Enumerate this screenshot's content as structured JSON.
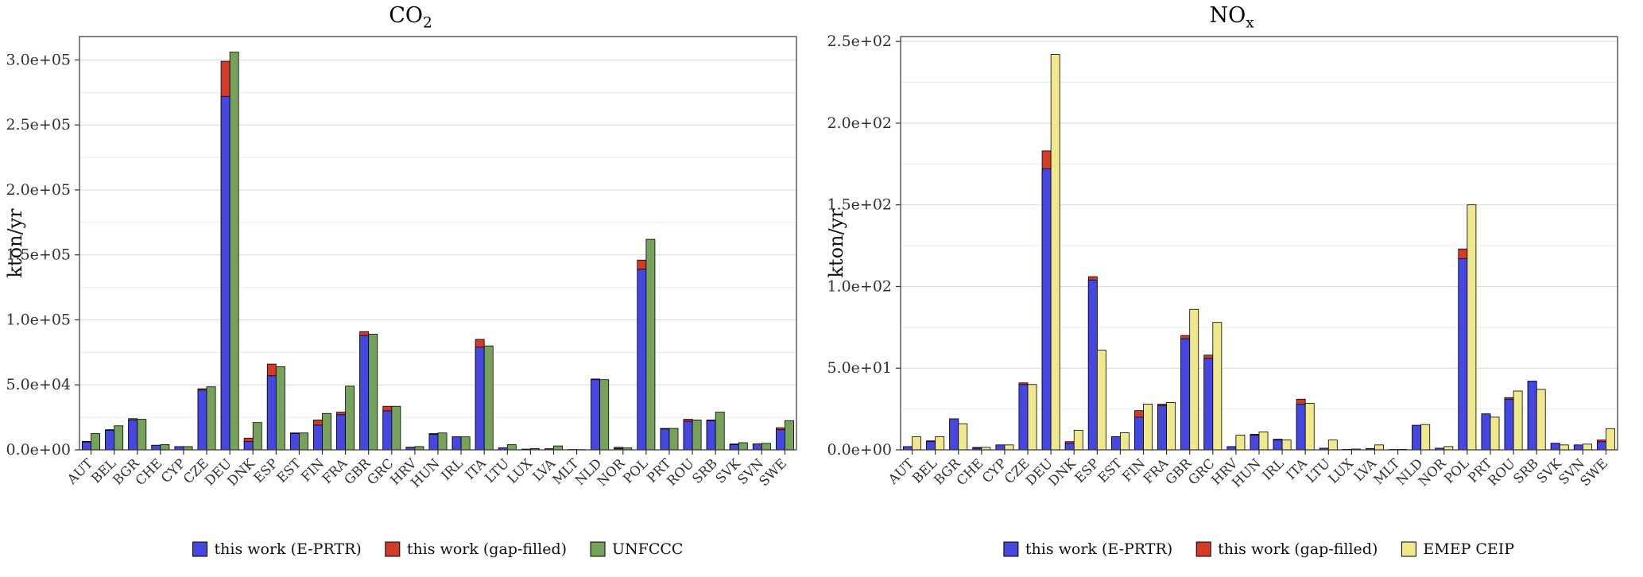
{
  "figure": {
    "background": "#ffffff",
    "grid_major_color": "#d9d9d9",
    "grid_minor_color": "#ebebeb",
    "plot_border_color": "#333333",
    "tick_label_color": "#303030",
    "bar_stroke_color": "#000000"
  },
  "chart_data": [
    {
      "type": "bar",
      "title_main": "CO",
      "title_sub": "2",
      "ylabel": "kton/yr",
      "ymax": 318000,
      "grid": true,
      "legend_position": "bottom",
      "bar_layout": "per country: one stacked bar (E-PRTR blue with gap-filled red cap) next to one reference bar",
      "yticks": [
        {
          "v": 0,
          "label": "0.0e+00"
        },
        {
          "v": 50000,
          "label": "5.0e+04"
        },
        {
          "v": 100000,
          "label": "1.0e+05"
        },
        {
          "v": 150000,
          "label": "1.5e+05"
        },
        {
          "v": 200000,
          "label": "2.0e+05"
        },
        {
          "v": 250000,
          "label": "2.5e+05"
        },
        {
          "v": 300000,
          "label": "3.0e+05"
        }
      ],
      "categories": [
        "AUT",
        "BEL",
        "BGR",
        "CHE",
        "CYP",
        "CZE",
        "DEU",
        "DNK",
        "ESP",
        "EST",
        "FIN",
        "FRA",
        "GBR",
        "GRC",
        "HRV",
        "HUN",
        "IRL",
        "ITA",
        "LTU",
        "LUX",
        "LVA",
        "MLT",
        "NLD",
        "NOR",
        "POL",
        "PRT",
        "ROU",
        "SRB",
        "SVK",
        "SVN",
        "SWE"
      ],
      "series": [
        {
          "id": "eprtr",
          "name": "this work (E-PRTR)",
          "color": "#4646e0",
          "values": [
            6000,
            15000,
            23000,
            3500,
            2500,
            46000,
            272000,
            6500,
            57000,
            12500,
            19000,
            27000,
            88000,
            30000,
            2000,
            12000,
            10000,
            79000,
            1500,
            500,
            800,
            200,
            54000,
            1000,
            139000,
            16000,
            22000,
            22500,
            4000,
            4500,
            15500
          ]
        },
        {
          "id": "gap",
          "name": "this work (gap-filled)",
          "color": "#d23b2a",
          "represents": "total after gap-filling (drawn behind E-PRTR bar, visible as red cap)",
          "values": [
            6500,
            15500,
            24000,
            3500,
            2500,
            47000,
            299000,
            9000,
            66000,
            13000,
            23000,
            29000,
            91000,
            33500,
            2000,
            12500,
            10000,
            85000,
            1500,
            500,
            800,
            200,
            54500,
            2000,
            146000,
            16500,
            23500,
            23000,
            4500,
            4500,
            17000
          ]
        },
        {
          "id": "ref",
          "name": "UNFCCC",
          "color": "#76a25c",
          "values": [
            12500,
            18500,
            23500,
            4000,
            2500,
            48500,
            306000,
            21000,
            64000,
            13000,
            28000,
            49000,
            89000,
            33500,
            2500,
            13000,
            10000,
            80000,
            4000,
            1000,
            3000,
            200,
            54000,
            1500,
            162000,
            16500,
            23000,
            29000,
            5500,
            5000,
            22500
          ]
        }
      ]
    },
    {
      "type": "bar",
      "title_main": "NO",
      "title_sub": "x",
      "ylabel": "kton/yr",
      "ymax": 253,
      "grid": true,
      "legend_position": "bottom",
      "bar_layout": "per country: one stacked bar (E-PRTR blue with gap-filled red cap) next to one reference bar",
      "yticks": [
        {
          "v": 0,
          "label": "0.0e+00"
        },
        {
          "v": 50,
          "label": "5.0e+01"
        },
        {
          "v": 100,
          "label": "1.0e+02"
        },
        {
          "v": 150,
          "label": "1.5e+02"
        },
        {
          "v": 200,
          "label": "2.0e+02"
        },
        {
          "v": 250,
          "label": "2.5e+02"
        }
      ],
      "categories": [
        "AUT",
        "BEL",
        "BGR",
        "CHE",
        "CYP",
        "CZE",
        "DEU",
        "DNK",
        "ESP",
        "EST",
        "FIN",
        "FRA",
        "GBR",
        "GRC",
        "HRV",
        "HUN",
        "IRL",
        "ITA",
        "LTU",
        "LUX",
        "LVA",
        "MLT",
        "NLD",
        "NOR",
        "POL",
        "PRT",
        "ROU",
        "SRB",
        "SVK",
        "SVN",
        "SWE"
      ],
      "series": [
        {
          "id": "eprtr",
          "name": "this work (E-PRTR)",
          "color": "#4646e0",
          "values": [
            2,
            5,
            19,
            1,
            3,
            40,
            172,
            4,
            104,
            8,
            20,
            27,
            68,
            56,
            2,
            9,
            6,
            28,
            1,
            0.3,
            0.8,
            0.2,
            15,
            1,
            117,
            22,
            31,
            42,
            4,
            3,
            5
          ]
        },
        {
          "id": "gap",
          "name": "this work (gap-filled)",
          "color": "#d23b2a",
          "represents": "total after gap-filling (drawn behind E-PRTR bar, visible as red cap)",
          "values": [
            2,
            5.5,
            19,
            1.5,
            3,
            41,
            183,
            5,
            106,
            8,
            24,
            28,
            70,
            58,
            2,
            9.5,
            6.5,
            31,
            1,
            0.3,
            0.8,
            0.2,
            15,
            1,
            123,
            22,
            32,
            42,
            4,
            3,
            6
          ]
        },
        {
          "id": "ref",
          "name": "EMEP CEIP",
          "color": "#efe88d",
          "values": [
            8,
            8,
            16,
            1.5,
            3,
            40,
            242,
            12,
            61,
            10.5,
            28,
            29,
            86,
            78,
            9,
            11,
            6,
            28.5,
            6,
            0.5,
            3,
            0.3,
            15.5,
            2,
            150,
            20,
            36,
            37,
            3,
            3.5,
            13
          ]
        }
      ]
    }
  ]
}
